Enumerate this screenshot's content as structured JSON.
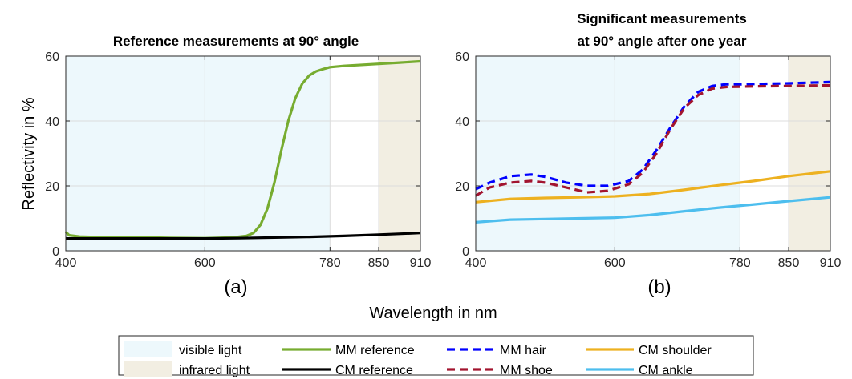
{
  "colors": {
    "visible_band": "#edf8fc",
    "infrared_band": "#f2eee2",
    "mm_reference": "#77ac30",
    "cm_reference": "#000000",
    "mm_hair": "#0000ff",
    "mm_shoe": "#a2142f",
    "cm_shoulder": "#edb120",
    "cm_ankle": "#4dbeee"
  },
  "shared": {
    "xlabel": "Wavelength in nm",
    "ylabel": "Reflectivity in %"
  },
  "legend": {
    "position": "bottom-center",
    "items": [
      {
        "label": "visible light",
        "style": "patch",
        "color": "#edf8fc"
      },
      {
        "label": "infrared light",
        "style": "patch",
        "color": "#f2eee2"
      },
      {
        "label": "MM reference",
        "style": "solid",
        "color": "#77ac30"
      },
      {
        "label": "CM reference",
        "style": "solid",
        "color": "#000000"
      },
      {
        "label": "MM hair",
        "style": "dashed",
        "color": "#0000ff"
      },
      {
        "label": "MM shoe",
        "style": "dashed",
        "color": "#a2142f"
      },
      {
        "label": "CM shoulder",
        "style": "solid",
        "color": "#edb120"
      },
      {
        "label": "CM ankle",
        "style": "solid",
        "color": "#4dbeee"
      }
    ]
  },
  "chart_data": [
    {
      "type": "line",
      "panel_label": "(a)",
      "title": [
        "Reference measurements at 90° angle"
      ],
      "xlim": [
        400,
        910
      ],
      "ylim": [
        0,
        60
      ],
      "xticks": [
        400,
        600,
        780,
        850,
        910
      ],
      "yticks": [
        0,
        20,
        40,
        60
      ],
      "grid": true,
      "bands": [
        {
          "name": "visible light",
          "from": 400,
          "to": 780
        },
        {
          "name": "infrared light",
          "from": 850,
          "to": 910
        }
      ],
      "series": [
        {
          "name": "MM reference",
          "style": "solid",
          "x": [
            400,
            405,
            420,
            450,
            500,
            550,
            600,
            640,
            660,
            670,
            680,
            690,
            700,
            710,
            720,
            730,
            740,
            750,
            760,
            770,
            780,
            800,
            850,
            880,
            910
          ],
          "y": [
            5.8,
            4.8,
            4.4,
            4.2,
            4.2,
            4.0,
            3.9,
            4.1,
            4.6,
            5.5,
            8.0,
            13.0,
            21.0,
            31.0,
            40.0,
            47.0,
            51.5,
            54.0,
            55.3,
            56.0,
            56.6,
            57.0,
            57.6,
            58.0,
            58.4
          ]
        },
        {
          "name": "CM reference",
          "style": "solid",
          "x": [
            400,
            450,
            500,
            550,
            600,
            650,
            700,
            750,
            800,
            850,
            910
          ],
          "y": [
            3.8,
            3.8,
            3.8,
            3.8,
            3.8,
            3.9,
            4.1,
            4.3,
            4.6,
            5.0,
            5.5
          ]
        }
      ]
    },
    {
      "type": "line",
      "panel_label": "(b)",
      "title": [
        "Significant measurements",
        "at 90° angle after one year"
      ],
      "xlim": [
        400,
        910
      ],
      "ylim": [
        0,
        60
      ],
      "xticks": [
        400,
        600,
        780,
        850,
        910
      ],
      "yticks": [
        0,
        20,
        40,
        60
      ],
      "grid": true,
      "bands": [
        {
          "name": "visible light",
          "from": 400,
          "to": 780
        },
        {
          "name": "infrared light",
          "from": 850,
          "to": 910
        }
      ],
      "series": [
        {
          "name": "MM hair",
          "style": "dashed",
          "x": [
            400,
            420,
            450,
            480,
            500,
            530,
            560,
            590,
            620,
            640,
            660,
            680,
            700,
            720,
            740,
            760,
            780,
            800,
            850,
            910
          ],
          "y": [
            19.0,
            21.0,
            23.0,
            23.5,
            22.8,
            21.0,
            20.0,
            20.0,
            21.5,
            25.0,
            31.0,
            38.0,
            44.5,
            49.0,
            50.8,
            51.3,
            51.3,
            51.4,
            51.6,
            52.0
          ]
        },
        {
          "name": "MM shoe",
          "style": "dashed",
          "x": [
            400,
            420,
            450,
            480,
            500,
            530,
            560,
            590,
            620,
            640,
            660,
            680,
            700,
            720,
            740,
            760,
            780,
            800,
            850,
            910
          ],
          "y": [
            17.0,
            19.5,
            21.0,
            21.5,
            21.0,
            19.5,
            18.0,
            18.5,
            20.5,
            24.0,
            30.0,
            37.5,
            44.0,
            48.0,
            50.0,
            50.5,
            50.6,
            50.7,
            50.8,
            51.0
          ]
        },
        {
          "name": "CM shoulder",
          "style": "solid",
          "x": [
            400,
            450,
            500,
            550,
            600,
            650,
            700,
            750,
            800,
            850,
            910
          ],
          "y": [
            15.0,
            16.0,
            16.3,
            16.5,
            16.8,
            17.5,
            18.8,
            20.2,
            21.5,
            23.0,
            24.5
          ]
        },
        {
          "name": "CM ankle",
          "style": "solid",
          "x": [
            400,
            450,
            500,
            550,
            600,
            650,
            700,
            750,
            800,
            850,
            910
          ],
          "y": [
            8.8,
            9.6,
            9.8,
            10.0,
            10.2,
            11.0,
            12.2,
            13.3,
            14.3,
            15.3,
            16.5
          ]
        }
      ]
    }
  ]
}
